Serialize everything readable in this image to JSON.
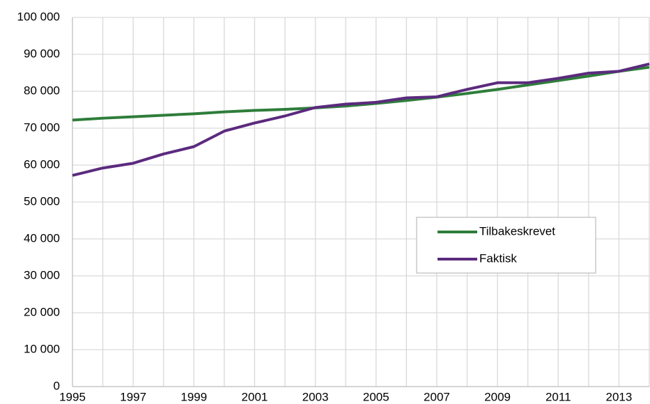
{
  "chart_data": {
    "type": "line",
    "categories": [
      "1995",
      null,
      "1997",
      null,
      "1999",
      null,
      "2001",
      null,
      "2003",
      null,
      "2005",
      null,
      "2007",
      null,
      "2009",
      null,
      "2011",
      null,
      "2013",
      null
    ],
    "series": [
      {
        "name": "Tilbakeskrevet",
        "color": "#2e7d3a",
        "values": [
          72200,
          72700,
          73100,
          73500,
          73900,
          74400,
          74800,
          75100,
          75500,
          76000,
          76700,
          77500,
          78400,
          79400,
          80500,
          81700,
          82900,
          84100,
          85400,
          86500
        ]
      },
      {
        "name": "Faktisk",
        "color": "#5b2a7e",
        "values": [
          57200,
          59200,
          60500,
          63000,
          65000,
          69200,
          71400,
          73300,
          75600,
          76500,
          77000,
          78200,
          78500,
          80500,
          82300,
          82300,
          83500,
          84900,
          85400,
          87400
        ]
      }
    ],
    "ylim": [
      0,
      100000
    ],
    "yticks": [
      0,
      {
        "value": 10000,
        "label": "10 000"
      },
      {
        "value": 20000,
        "label": "20 000"
      },
      {
        "value": 30000,
        "label": "30 000"
      },
      {
        "value": 40000,
        "label": "40 000"
      },
      {
        "value": 50000,
        "label": "50 000"
      },
      {
        "value": 60000,
        "label": "60 000"
      },
      {
        "value": 70000,
        "label": "70 000"
      },
      {
        "value": 80000,
        "label": "80 000"
      },
      {
        "value": 90000,
        "label": "90 000"
      },
      {
        "value": 100000,
        "label": "100 000"
      }
    ],
    "grid": true,
    "legend": "right"
  }
}
